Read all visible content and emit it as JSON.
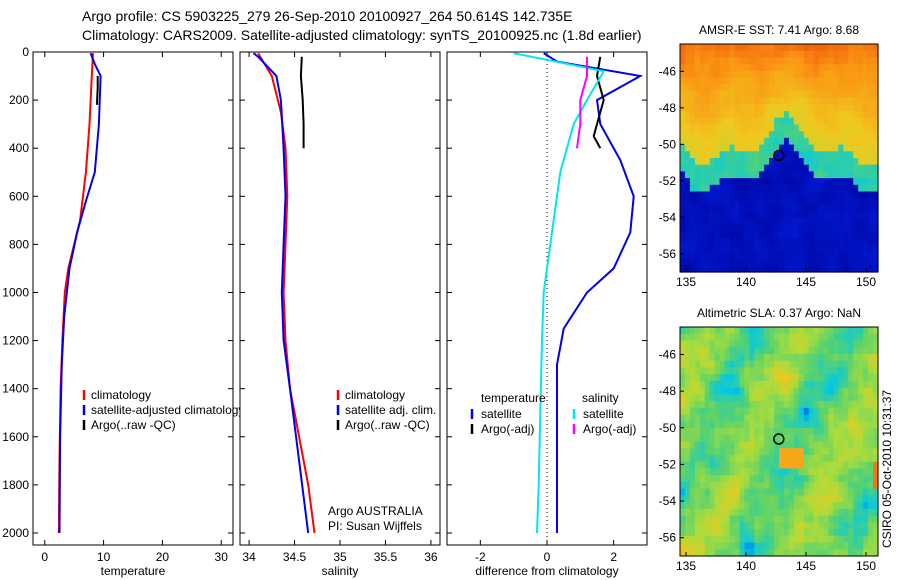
{
  "header": {
    "line1": "Argo profile: CS 5903225_279 26-Sep-2010 20100927_264 50.614S 142.735E",
    "line2": "Climatology: CARS2009. Satellite-adjusted climatology: synTS_20100925.nc (1.8d earlier)"
  },
  "colors": {
    "climatology": "#ff0000",
    "satellite": "#0000ee",
    "argo": "#000000",
    "satellite_salinity": "#00e5ee",
    "argo_adj_salinity": "#ff00ff"
  },
  "chart_data": [
    {
      "type": "line",
      "panel": "temperature",
      "xlabel": "temperature",
      "ylabel": "",
      "xlim": [
        -2,
        32
      ],
      "ylim": [
        2050,
        0
      ],
      "xticks": [
        0,
        10,
        20,
        30
      ],
      "yticks": [
        0,
        200,
        400,
        600,
        800,
        1000,
        1200,
        1400,
        1600,
        1800,
        2000
      ],
      "legend": [
        "climatology",
        "satellite-adjusted climatology",
        "Argo(..raw -QC)"
      ],
      "series": [
        {
          "name": "climatology",
          "color": "#ff0000",
          "x": [
            8.2,
            8.0,
            7.6,
            7.0,
            6.0,
            5.0,
            4.0,
            3.4,
            3.0,
            2.7,
            2.5,
            2.4
          ],
          "y": [
            5,
            100,
            300,
            500,
            700,
            800,
            900,
            1000,
            1200,
            1400,
            1700,
            2000
          ]
        },
        {
          "name": "satellite-adjusted climatology",
          "color": "#0000ee",
          "x": [
            7.8,
            8.5,
            9.5,
            9.2,
            8.5,
            7.0,
            5.5,
            4.2,
            3.3,
            2.9,
            2.6,
            2.5
          ],
          "y": [
            5,
            50,
            100,
            300,
            500,
            620,
            750,
            900,
            1100,
            1300,
            1600,
            2000
          ]
        },
        {
          "name": "Argo(..raw -QC)",
          "color": "#000000",
          "x": [
            9.0,
            9.0,
            8.9,
            8.9
          ],
          "y": [
            100,
            150,
            200,
            220
          ]
        }
      ]
    },
    {
      "type": "line",
      "panel": "salinity",
      "xlabel": "salinity",
      "xlim": [
        33.9,
        36.1
      ],
      "ylim": [
        2050,
        0
      ],
      "xticks": [
        34,
        34.5,
        35,
        35.5,
        36
      ],
      "legend": [
        "climatology",
        "satellite adj. clim.",
        "Argo(..raw -QC)"
      ],
      "annotations": [
        "Argo AUSTRALIA",
        "PI: Susan Wijffels"
      ],
      "series": [
        {
          "name": "climatology",
          "color": "#ff0000",
          "x": [
            34.1,
            34.25,
            34.35,
            34.4,
            34.42,
            34.4,
            34.38,
            34.4,
            34.45,
            34.55,
            34.65,
            34.72
          ],
          "y": [
            5,
            100,
            250,
            400,
            600,
            800,
            1000,
            1200,
            1400,
            1600,
            1800,
            2000
          ]
        },
        {
          "name": "satellite adj. clim.",
          "color": "#0000ee",
          "x": [
            34.05,
            34.1,
            34.2,
            34.3,
            34.35,
            34.38,
            34.4,
            34.38,
            34.36,
            34.38,
            34.45,
            34.55,
            34.65
          ],
          "y": [
            5,
            20,
            60,
            100,
            200,
            400,
            600,
            800,
            1000,
            1200,
            1400,
            1700,
            2000
          ]
        },
        {
          "name": "Argo(..raw -QC)",
          "color": "#000000",
          "x": [
            34.58,
            34.57,
            34.59,
            34.6,
            34.6
          ],
          "y": [
            20,
            100,
            200,
            300,
            400
          ]
        }
      ]
    },
    {
      "type": "line",
      "panel": "difference",
      "xlabel": "difference from climatology",
      "xlim": [
        -3,
        3
      ],
      "ylim": [
        2050,
        0
      ],
      "xticks": [
        -2,
        0,
        2
      ],
      "legend_left_title": "temperature",
      "legend_right_title": "salinity",
      "legend": [
        "satellite",
        "Argo(-adj)",
        "satellite",
        "Argo(-adj)"
      ],
      "series": [
        {
          "name": "temperature satellite",
          "color": "#0000ee",
          "x": [
            -0.1,
            0.3,
            2.8,
            1.5,
            1.6,
            2.2,
            2.6,
            2.5,
            2.0,
            1.2,
            0.5,
            0.3,
            0.3,
            0.3
          ],
          "y": [
            5,
            40,
            100,
            200,
            300,
            450,
            600,
            750,
            900,
            1000,
            1150,
            1300,
            1600,
            2000
          ]
        },
        {
          "name": "temperature Argo(-adj)",
          "color": "#000000",
          "x": [
            1.6,
            1.5,
            1.7,
            1.5,
            1.4,
            1.6
          ],
          "y": [
            20,
            100,
            200,
            300,
            350,
            400
          ]
        },
        {
          "name": "salinity satellite",
          "color": "#00e5ee",
          "x": [
            -1.0,
            1.7,
            1.2,
            0.8,
            0.4,
            0.1,
            -0.1,
            -0.15,
            -0.2,
            -0.25,
            -0.3
          ],
          "y": [
            5,
            80,
            200,
            300,
            500,
            800,
            1000,
            1200,
            1500,
            1800,
            2000
          ]
        },
        {
          "name": "salinity Argo(-adj)",
          "color": "#ff00ff",
          "x": [
            1.2,
            1.2,
            1.0,
            1.0,
            0.9
          ],
          "y": [
            20,
            100,
            200,
            300,
            400
          ]
        }
      ]
    },
    {
      "type": "heatmap",
      "panel": "sst_map",
      "title": "AMSR-E SST: 7.41 Argo: 8.68",
      "xlim": [
        134.5,
        151
      ],
      "ylim": [
        -57,
        -44.5
      ],
      "xticks": [
        135,
        140,
        145,
        150
      ],
      "yticks": [
        -46,
        -48,
        -50,
        -52,
        -54,
        -56
      ],
      "marker": {
        "lon": 142.735,
        "lat": -50.614
      }
    },
    {
      "type": "heatmap",
      "panel": "sla_map",
      "title": "Altimetric SLA: 0.37 Argo: NaN",
      "xlim": [
        134.5,
        151
      ],
      "ylim": [
        -57,
        -44.5
      ],
      "xticks": [
        135,
        140,
        145,
        150
      ],
      "yticks": [
        -46,
        -48,
        -50,
        -52,
        -54,
        -56
      ],
      "marker": {
        "lon": 142.735,
        "lat": -50.614
      }
    }
  ],
  "footer": {
    "credit": "CSIRO 05-Oct-2010 10:31:37"
  }
}
